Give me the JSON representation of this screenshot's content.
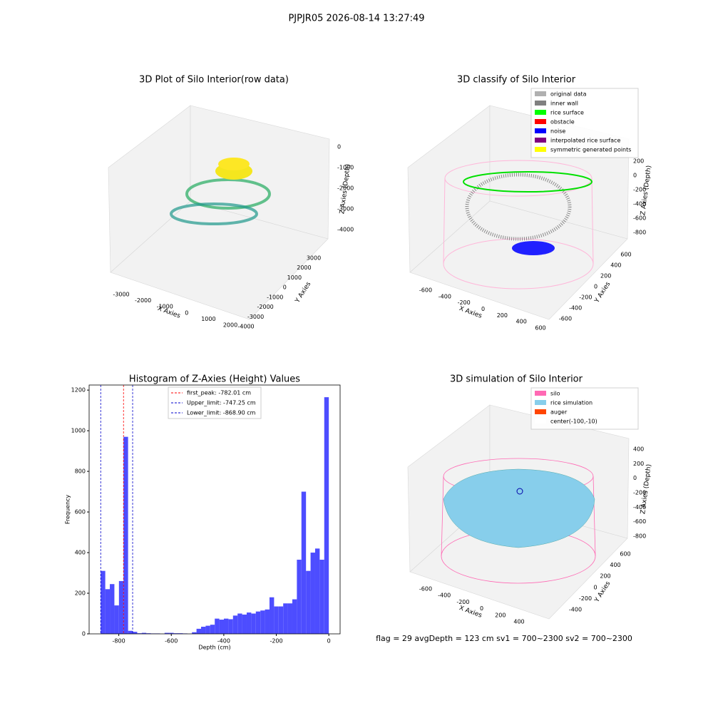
{
  "title": "PJPJR05 2026-08-14 13:27:49",
  "footer": "flag = 29  avgDepth = 123 cm  sv1 = 700~2300  sv2 = 700~2300",
  "chart_data": [
    {
      "type": "scatter3d",
      "title": "3D Plot of Silo Interior(row data)",
      "xlabel": "X Axies",
      "ylabel": "Y Axies",
      "zlabel": "Z Axies (Depth)",
      "xticks": [
        -3000,
        -2000,
        -1000,
        0,
        1000,
        2000
      ],
      "yticks": [
        -4000,
        -3000,
        -2000,
        -1000,
        0,
        1000,
        2000,
        3000
      ],
      "zticks": [
        0,
        -1000,
        -2000,
        -3000,
        -4000
      ]
    },
    {
      "type": "scatter3d",
      "title": "3D classify of Silo Interior",
      "xlabel": "X Axies",
      "ylabel": "Y Axies",
      "zlabel": "Z Axies (Depth)",
      "xticks": [
        -600,
        -400,
        -200,
        0,
        200,
        400,
        600
      ],
      "yticks": [
        -600,
        -400,
        -200,
        0,
        200,
        400,
        600
      ],
      "zticks": [
        200,
        0,
        -200,
        -400,
        -600,
        -800
      ],
      "legend": [
        {
          "name": "original data",
          "color": "#b0b0b0"
        },
        {
          "name": "inner wall",
          "color": "#808080"
        },
        {
          "name": "rice surface",
          "color": "#00ff00"
        },
        {
          "name": "obstacle",
          "color": "#ff0000"
        },
        {
          "name": "noise",
          "color": "#0000ff"
        },
        {
          "name": "interpolated rice surface",
          "color": "#800080"
        },
        {
          "name": "symmetric generated points",
          "color": "#ffff00"
        }
      ]
    },
    {
      "type": "histogram",
      "title": "Histogram of Z-Axies (Height) Values",
      "xlabel": "Depth (cm)",
      "ylabel": "Frequency",
      "color": "#4d4dff",
      "bins": [
        -868.9,
        -851.52,
        -834.14,
        -816.77,
        -799.39,
        -782.01,
        -764.63,
        -747.25,
        -729.88,
        -712.5,
        -695.12,
        -677.74,
        -660.36,
        -642.99,
        -625.61,
        -608.23,
        -590.85,
        -573.47,
        -556.1,
        -538.72,
        -521.34,
        -503.96,
        -486.58,
        -469.21,
        -451.83,
        -434.45,
        -417.07,
        -399.69,
        -382.32,
        -364.94,
        -347.56,
        -330.18,
        -312.8,
        -295.43,
        -278.05,
        -260.67,
        -243.29,
        -225.91,
        -208.54,
        -191.16,
        -173.78,
        -156.4,
        -139.02,
        -121.65,
        -104.27,
        -86.89,
        -69.51,
        -52.13,
        -34.76,
        -17.38,
        0
      ],
      "values": [
        310,
        220,
        245,
        140,
        260,
        970,
        15,
        10,
        3,
        5,
        3,
        2,
        2,
        0,
        5,
        5,
        3,
        3,
        2,
        0,
        8,
        25,
        35,
        40,
        45,
        75,
        70,
        75,
        72,
        90,
        100,
        95,
        105,
        100,
        110,
        115,
        120,
        180,
        135,
        135,
        150,
        150,
        170,
        365,
        700,
        310,
        400,
        420,
        365,
        1165
      ],
      "xlim": [
        -913,
        43
      ],
      "ylim": [
        0,
        1225
      ],
      "xticks": [
        -800,
        -600,
        -400,
        -200,
        0
      ],
      "yticks": [
        0,
        200,
        400,
        600,
        800,
        1000,
        1200
      ],
      "vlines": [
        {
          "value": -782.01,
          "label": "first_peak: -782.01 cm",
          "color": "#ff0000"
        },
        {
          "value": -747.25,
          "label": "Upper_limit: -747.25 cm",
          "color": "#0000cc"
        },
        {
          "value": -868.9,
          "label": "Lower_limit: -868.90 cm",
          "color": "#0000cc"
        }
      ]
    },
    {
      "type": "scatter3d",
      "title": "3D simulation of Silo Interior",
      "xlabel": "X Axies",
      "ylabel": "Y Axies",
      "zlabel": "Z Axies (Depth)",
      "xticks": [
        -600,
        -400,
        -200,
        0,
        200,
        400
      ],
      "yticks": [
        -400,
        -200,
        0,
        200,
        400,
        600
      ],
      "zticks": [
        400,
        200,
        0,
        -200,
        -400,
        -600,
        -800
      ],
      "legend": [
        {
          "name": "silo",
          "color": "#ff69b4"
        },
        {
          "name": "rice simulation",
          "color": "#87ceeb"
        },
        {
          "name": "auger",
          "color": "#ff4500"
        },
        {
          "name": "center(-100,-10)",
          "color": "#ffffff"
        }
      ]
    }
  ]
}
